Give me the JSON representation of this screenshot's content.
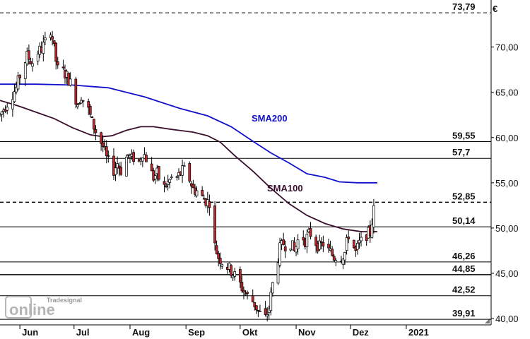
{
  "chart_data": {
    "type": "candlestick",
    "currency": "€",
    "y_ticks": [
      "40,00",
      "45,00",
      "50,00",
      "55,00",
      "60,00",
      "65,00",
      "70,00"
    ],
    "y_tick_values": [
      40,
      45,
      50,
      55,
      60,
      65,
      70
    ],
    "ylim": [
      39.3,
      75.2
    ],
    "x_ticks": [
      {
        "label": "Jun",
        "day": 11
      },
      {
        "label": "Jul",
        "day": 41
      },
      {
        "label": "Aug",
        "day": 72
      },
      {
        "label": "Sep",
        "day": 103
      },
      {
        "label": "Okt",
        "day": 133
      },
      {
        "label": "Nov",
        "day": 164
      },
      {
        "label": "Dez",
        "day": 194
      },
      {
        "label": "2021",
        "day": 225
      }
    ],
    "x_range_days": [
      0,
      272
    ],
    "horizontal_levels": [
      {
        "label": "73,79",
        "value": 73.79,
        "style": "dashed"
      },
      {
        "label": "59,55",
        "value": 59.55,
        "style": "solid"
      },
      {
        "label": "57,7",
        "value": 57.7,
        "style": "solid"
      },
      {
        "label": "52,85",
        "value": 52.85,
        "style": "dashed"
      },
      {
        "label": "50,14",
        "value": 50.14,
        "style": "solid"
      },
      {
        "label": "46,26",
        "value": 46.26,
        "style": "solid"
      },
      {
        "label": "44,85",
        "value": 44.85,
        "style": "solid"
      },
      {
        "label": "42,52",
        "value": 42.52,
        "style": "solid"
      },
      {
        "label": "39,91",
        "value": 39.91,
        "style": "solid"
      }
    ],
    "price_path": [
      [
        0,
        62.5
      ],
      [
        3,
        63.5
      ],
      [
        6,
        64.5
      ],
      [
        9,
        65.5
      ],
      [
        12,
        67.5
      ],
      [
        15,
        69.0
      ],
      [
        18,
        68.3
      ],
      [
        20,
        69.3
      ],
      [
        23,
        69.8
      ],
      [
        25,
        70.5
      ],
      [
        27,
        73.0
      ],
      [
        29,
        71.0
      ],
      [
        31,
        68.5
      ],
      [
        33,
        66.5
      ],
      [
        35,
        67.3
      ],
      [
        37,
        66.8
      ],
      [
        39,
        66.0
      ],
      [
        41,
        64.8
      ],
      [
        43,
        63.8
      ],
      [
        45,
        64.7
      ],
      [
        47,
        63.6
      ],
      [
        49,
        63.0
      ],
      [
        51,
        61.7
      ],
      [
        53,
        60.7
      ],
      [
        55,
        59.9
      ],
      [
        57,
        59.0
      ],
      [
        59,
        57.7
      ],
      [
        61,
        56.9
      ],
      [
        63,
        56.4
      ],
      [
        65,
        57.2
      ],
      [
        67,
        56.4
      ],
      [
        69,
        57.6
      ],
      [
        71,
        58.0
      ],
      [
        73,
        57.6
      ],
      [
        75,
        58.0
      ],
      [
        77,
        57.3
      ],
      [
        79,
        58.4
      ],
      [
        81,
        57.7
      ],
      [
        83,
        56.4
      ],
      [
        85,
        55.6
      ],
      [
        87,
        56.0
      ],
      [
        89,
        55.0
      ],
      [
        91,
        54.5
      ],
      [
        93,
        55.0
      ],
      [
        95,
        55.5
      ],
      [
        97,
        55.2
      ],
      [
        99,
        55.8
      ],
      [
        101,
        56.3
      ],
      [
        103,
        56.5
      ],
      [
        105,
        55.4
      ],
      [
        107,
        54.3
      ],
      [
        109,
        54.1
      ],
      [
        111,
        53.5
      ],
      [
        113,
        53.2
      ],
      [
        115,
        52.9
      ],
      [
        117,
        53.0
      ],
      [
        119,
        48.0
      ],
      [
        121,
        46.8
      ],
      [
        123,
        46.3
      ],
      [
        125,
        46.0
      ],
      [
        127,
        45.5
      ],
      [
        129,
        45.0
      ],
      [
        131,
        44.5
      ],
      [
        133,
        43.8
      ],
      [
        135,
        43.0
      ],
      [
        137,
        42.5
      ],
      [
        139,
        42.2
      ],
      [
        141,
        41.6
      ],
      [
        143,
        40.8
      ],
      [
        145,
        40.3
      ],
      [
        147,
        40.0
      ],
      [
        149,
        41.2
      ],
      [
        151,
        43.8
      ],
      [
        153,
        45.8
      ],
      [
        155,
        47.7
      ],
      [
        157,
        48.3
      ],
      [
        159,
        48.0
      ],
      [
        161,
        48.4
      ],
      [
        163,
        47.4
      ],
      [
        165,
        48.6
      ],
      [
        167,
        49.3
      ],
      [
        169,
        48.6
      ],
      [
        171,
        49.3
      ],
      [
        173,
        49.4
      ],
      [
        175,
        48.4
      ],
      [
        177,
        47.9
      ],
      [
        179,
        48.3
      ],
      [
        181,
        47.6
      ],
      [
        183,
        47.3
      ],
      [
        185,
        46.8
      ],
      [
        187,
        47.0
      ],
      [
        189,
        46.8
      ],
      [
        191,
        47.3
      ],
      [
        193,
        49.3
      ],
      [
        195,
        48.4
      ],
      [
        197,
        47.3
      ],
      [
        199,
        48.3
      ],
      [
        201,
        48.6
      ],
      [
        203,
        49.3
      ],
      [
        205,
        49.5
      ],
      [
        207,
        52.0
      ],
      [
        209,
        53.0
      ]
    ],
    "series": [
      {
        "name": "SMA200",
        "color": "#1010cc",
        "points": [
          [
            0,
            65.9
          ],
          [
            20,
            65.9
          ],
          [
            40,
            65.8
          ],
          [
            60,
            65.5
          ],
          [
            80,
            64.5
          ],
          [
            100,
            63.2
          ],
          [
            115,
            62.4
          ],
          [
            128,
            61.2
          ],
          [
            140,
            59.6
          ],
          [
            150,
            58.3
          ],
          [
            160,
            57.2
          ],
          [
            170,
            56.0
          ],
          [
            180,
            55.6
          ],
          [
            188,
            55.1
          ],
          [
            198,
            55.0
          ],
          [
            209,
            55.0
          ]
        ]
      },
      {
        "name": "SMA100",
        "color": "#3a0f2e",
        "points": [
          [
            0,
            64.1
          ],
          [
            10,
            63.5
          ],
          [
            20,
            62.8
          ],
          [
            30,
            62.1
          ],
          [
            40,
            61.1
          ],
          [
            50,
            60.3
          ],
          [
            57,
            60.1
          ],
          [
            62,
            60.2
          ],
          [
            70,
            60.8
          ],
          [
            78,
            61.2
          ],
          [
            85,
            61.2
          ],
          [
            95,
            60.9
          ],
          [
            107,
            60.6
          ],
          [
            115,
            60.2
          ],
          [
            122,
            59.5
          ],
          [
            130,
            58.0
          ],
          [
            140,
            56.3
          ],
          [
            150,
            54.4
          ],
          [
            160,
            52.7
          ],
          [
            170,
            51.4
          ],
          [
            180,
            50.5
          ],
          [
            190,
            49.9
          ],
          [
            200,
            49.6
          ],
          [
            209,
            49.6
          ]
        ]
      }
    ],
    "annotations": [
      "SMA200",
      "SMA100"
    ],
    "grid": false
  },
  "watermark": {
    "brand": "Tradesignal",
    "product": "online"
  }
}
